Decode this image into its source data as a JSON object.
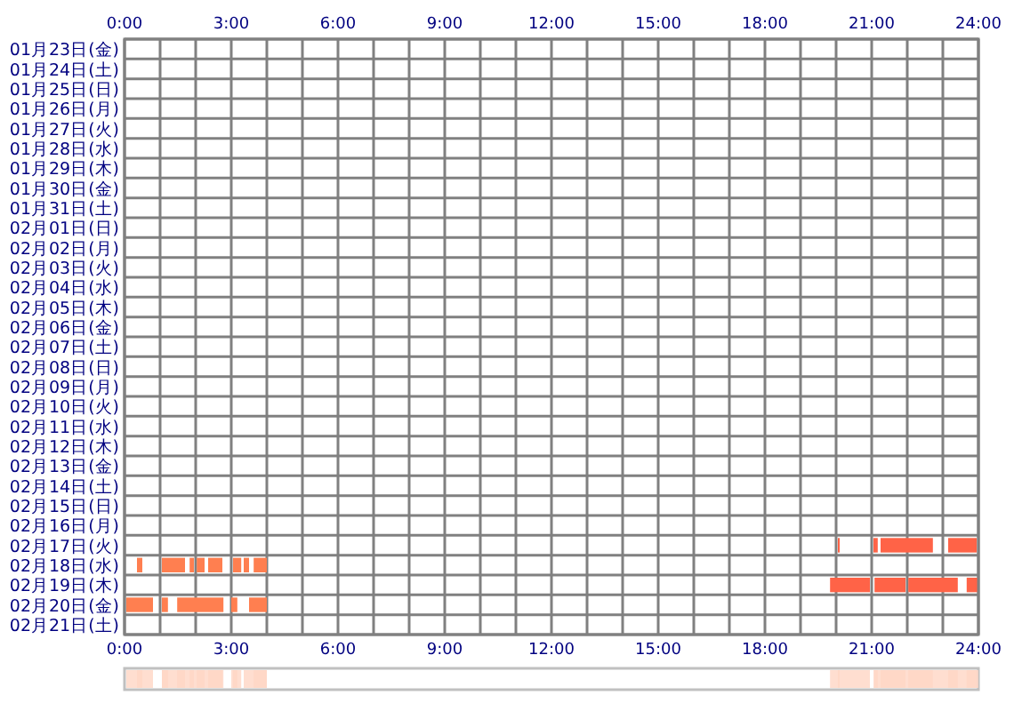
{
  "chart_data": {
    "type": "bar",
    "orientation": "horizontal",
    "categories": [
      "01月23日(金)",
      "01月24日(土)",
      "01月25日(日)",
      "01月26日(月)",
      "01月27日(火)",
      "01月28日(水)",
      "01月29日(木)",
      "01月30日(金)",
      "01月31日(土)",
      "02月01日(日)",
      "02月02日(月)",
      "02月03日(火)",
      "02月04日(水)",
      "02月05日(木)",
      "02月06日(金)",
      "02月07日(土)",
      "02月08日(日)",
      "02月09日(月)",
      "02月10日(火)",
      "02月11日(水)",
      "02月12日(木)",
      "02月13日(金)",
      "02月14日(土)",
      "02月15日(日)",
      "02月16日(月)",
      "02月17日(火)",
      "02月18日(水)",
      "02月19日(木)",
      "02月20日(金)",
      "02月21日(土)"
    ],
    "series": [
      {
        "colors": [
          null,
          null,
          null,
          null,
          null,
          null,
          null,
          null,
          null,
          null,
          null,
          null,
          null,
          null,
          null,
          null,
          null,
          null,
          null,
          null,
          null,
          null,
          null,
          null,
          null,
          "#ff6347",
          "#ff7f50",
          "#ff6347",
          "#ff7f50",
          null
        ],
        "base": [
          null,
          null,
          null,
          null,
          null,
          null,
          null,
          null,
          null,
          null,
          null,
          null,
          null,
          null,
          null,
          null,
          null,
          null,
          null,
          null,
          null,
          null,
          null,
          null,
          null,
          20.05,
          0.35,
          19.83,
          0.05,
          null
        ],
        "values": [
          null,
          null,
          null,
          null,
          null,
          null,
          null,
          null,
          null,
          null,
          null,
          null,
          null,
          null,
          null,
          null,
          null,
          null,
          null,
          null,
          null,
          null,
          null,
          null,
          null,
          0.05,
          0.15,
          1.12,
          0.75,
          null
        ]
      },
      {
        "colors": [
          null,
          null,
          null,
          null,
          null,
          null,
          null,
          null,
          null,
          null,
          null,
          null,
          null,
          null,
          null,
          null,
          null,
          null,
          null,
          null,
          null,
          null,
          null,
          null,
          null,
          "#ff6347",
          "#ff7f50",
          "#ff6347",
          "#ff7f50",
          null
        ],
        "base": [
          null,
          null,
          null,
          null,
          null,
          null,
          null,
          null,
          null,
          null,
          null,
          null,
          null,
          null,
          null,
          null,
          null,
          null,
          null,
          null,
          null,
          null,
          null,
          null,
          null,
          21.05,
          1.05,
          21.08,
          1.05,
          null
        ],
        "values": [
          null,
          null,
          null,
          null,
          null,
          null,
          null,
          null,
          null,
          null,
          null,
          null,
          null,
          null,
          null,
          null,
          null,
          null,
          null,
          null,
          null,
          null,
          null,
          null,
          null,
          0.12,
          0.65,
          0.87,
          0.17,
          null
        ]
      },
      {
        "colors": [
          null,
          null,
          null,
          null,
          null,
          null,
          null,
          null,
          null,
          null,
          null,
          null,
          null,
          null,
          null,
          null,
          null,
          null,
          null,
          null,
          null,
          null,
          null,
          null,
          null,
          "#ff6347",
          "#ff7f50",
          "#ff6347",
          "#ff7f50",
          null
        ],
        "base": [
          null,
          null,
          null,
          null,
          null,
          null,
          null,
          null,
          null,
          null,
          null,
          null,
          null,
          null,
          null,
          null,
          null,
          null,
          null,
          null,
          null,
          null,
          null,
          null,
          null,
          21.25,
          1.83,
          22.03,
          1.48,
          null
        ],
        "values": [
          null,
          null,
          null,
          null,
          null,
          null,
          null,
          null,
          null,
          null,
          null,
          null,
          null,
          null,
          null,
          null,
          null,
          null,
          null,
          null,
          null,
          null,
          null,
          null,
          null,
          1.47,
          0.12,
          1.39,
          1.3,
          null
        ]
      },
      {
        "colors": [
          null,
          null,
          null,
          null,
          null,
          null,
          null,
          null,
          null,
          null,
          null,
          null,
          null,
          null,
          null,
          null,
          null,
          null,
          null,
          null,
          null,
          null,
          null,
          null,
          null,
          "#ff6347",
          "#ff7f50",
          "#ff6347",
          "#ff7f50",
          null
        ],
        "base": [
          null,
          null,
          null,
          null,
          null,
          null,
          null,
          null,
          null,
          null,
          null,
          null,
          null,
          null,
          null,
          null,
          null,
          null,
          null,
          null,
          null,
          null,
          null,
          null,
          null,
          23.15,
          2.03,
          23.67,
          3.0,
          null
        ],
        "values": [
          null,
          null,
          null,
          null,
          null,
          null,
          null,
          null,
          null,
          null,
          null,
          null,
          null,
          null,
          null,
          null,
          null,
          null,
          null,
          null,
          null,
          null,
          null,
          null,
          null,
          0.8,
          0.22,
          0.33,
          0.17,
          null
        ]
      },
      {
        "color": "#ff7f50",
        "base": [
          null,
          null,
          null,
          null,
          null,
          null,
          null,
          null,
          null,
          null,
          null,
          null,
          null,
          null,
          null,
          null,
          null,
          null,
          null,
          null,
          null,
          null,
          null,
          null,
          null,
          null,
          2.35,
          null,
          3.5,
          null
        ],
        "values": [
          null,
          null,
          null,
          null,
          null,
          null,
          null,
          null,
          null,
          null,
          null,
          null,
          null,
          null,
          null,
          null,
          null,
          null,
          null,
          null,
          null,
          null,
          null,
          null,
          null,
          null,
          0.4,
          null,
          0.5,
          null
        ]
      },
      {
        "color": "#ff7f50",
        "base": [
          null,
          null,
          null,
          null,
          null,
          null,
          null,
          null,
          null,
          null,
          null,
          null,
          null,
          null,
          null,
          null,
          null,
          null,
          null,
          null,
          null,
          null,
          null,
          null,
          null,
          null,
          3.05,
          null,
          null,
          null
        ],
        "values": [
          null,
          null,
          null,
          null,
          null,
          null,
          null,
          null,
          null,
          null,
          null,
          null,
          null,
          null,
          null,
          null,
          null,
          null,
          null,
          null,
          null,
          null,
          null,
          null,
          null,
          null,
          0.23,
          null,
          null,
          null
        ]
      },
      {
        "color": "#ff7f50",
        "base": [
          null,
          null,
          null,
          null,
          null,
          null,
          null,
          null,
          null,
          null,
          null,
          null,
          null,
          null,
          null,
          null,
          null,
          null,
          null,
          null,
          null,
          null,
          null,
          null,
          null,
          null,
          3.35,
          null,
          null,
          null
        ],
        "values": [
          null,
          null,
          null,
          null,
          null,
          null,
          null,
          null,
          null,
          null,
          null,
          null,
          null,
          null,
          null,
          null,
          null,
          null,
          null,
          null,
          null,
          null,
          null,
          null,
          null,
          null,
          0.15,
          null,
          null,
          null
        ]
      },
      {
        "color": "#ff7f50",
        "base": [
          null,
          null,
          null,
          null,
          null,
          null,
          null,
          null,
          null,
          null,
          null,
          null,
          null,
          null,
          null,
          null,
          null,
          null,
          null,
          null,
          null,
          null,
          null,
          null,
          null,
          null,
          3.63,
          null,
          null,
          null
        ],
        "values": [
          null,
          null,
          null,
          null,
          null,
          null,
          null,
          null,
          null,
          null,
          null,
          null,
          null,
          null,
          null,
          null,
          null,
          null,
          null,
          null,
          null,
          null,
          null,
          null,
          null,
          null,
          0.37,
          null,
          null,
          null
        ]
      }
    ],
    "xlim": [
      0,
      24
    ],
    "xticks": [
      {
        "value": 0,
        "label": "0:00"
      },
      {
        "value": 1,
        "label": null
      },
      {
        "value": 2,
        "label": null
      },
      {
        "value": 3,
        "label": "3:00"
      },
      {
        "value": 4,
        "label": null
      },
      {
        "value": 5,
        "label": null
      },
      {
        "value": 6,
        "label": "6:00"
      },
      {
        "value": 7,
        "label": null
      },
      {
        "value": 8,
        "label": null
      },
      {
        "value": 9,
        "label": "9:00"
      },
      {
        "value": 10,
        "label": null
      },
      {
        "value": 11,
        "label": null
      },
      {
        "value": 12,
        "label": "12:00"
      },
      {
        "value": 13,
        "label": null
      },
      {
        "value": 14,
        "label": null
      },
      {
        "value": 15,
        "label": "15:00"
      },
      {
        "value": 16,
        "label": null
      },
      {
        "value": 17,
        "label": null
      },
      {
        "value": 18,
        "label": "18:00"
      },
      {
        "value": 19,
        "label": null
      },
      {
        "value": 20,
        "label": null
      },
      {
        "value": 21,
        "label": "21:00"
      },
      {
        "value": 22,
        "label": null
      },
      {
        "value": 23,
        "label": null
      },
      {
        "value": 24,
        "label": "24:00"
      }
    ],
    "x2lim": [
      0,
      24
    ],
    "x2ticks": [
      {
        "value": 0,
        "label": "0:00"
      },
      {
        "value": 3,
        "label": "3:00"
      },
      {
        "value": 6,
        "label": "6:00"
      },
      {
        "value": 9,
        "label": "9:00"
      },
      {
        "value": 12,
        "label": "12:00"
      },
      {
        "value": 15,
        "label": "15:00"
      },
      {
        "value": 18,
        "label": "18:00"
      },
      {
        "value": 21,
        "label": "21:00"
      },
      {
        "value": 24,
        "label": "24:00"
      }
    ],
    "grid": true
  }
}
